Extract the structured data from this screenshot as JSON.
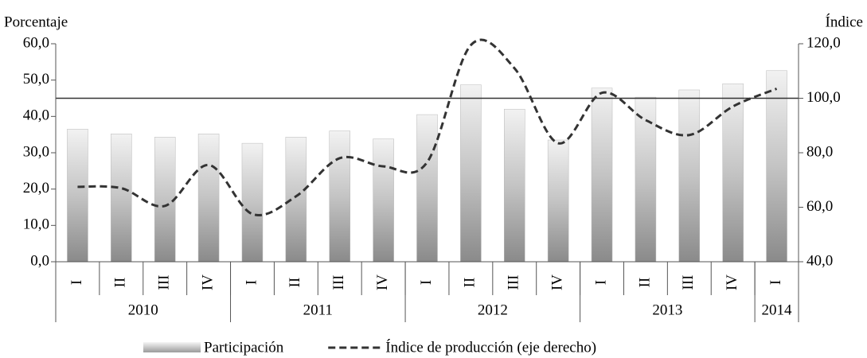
{
  "chart_data": {
    "type": "bar_line",
    "y_label": "Porcentaje",
    "y2_label": "Índice",
    "categories": [
      "I",
      "II",
      "III",
      "IV",
      "I",
      "II",
      "III",
      "IV",
      "I",
      "II",
      "III",
      "IV",
      "I",
      "II",
      "III",
      "IV",
      "I"
    ],
    "groups": [
      {
        "label": "2010",
        "span": 4
      },
      {
        "label": "2011",
        "span": 4
      },
      {
        "label": "2012",
        "span": 4
      },
      {
        "label": "2013",
        "span": 4
      },
      {
        "label": "2014",
        "span": 1
      }
    ],
    "series": [
      {
        "name": "Participación",
        "type": "bar",
        "color": "#b8b8b8",
        "values": [
          36.5,
          35.2,
          34.3,
          35.2,
          32.6,
          34.3,
          36.0,
          33.8,
          40.5,
          48.7,
          42.0,
          33.5,
          47.8,
          45.3,
          47.3,
          49.0,
          52.6
        ]
      },
      {
        "name": "Índice de producción (eje derecho)",
        "type": "line",
        "axis": "y2",
        "color": "#333333",
        "dashed": true,
        "values": [
          67.5,
          67.0,
          60.5,
          75.5,
          57.5,
          64.0,
          78.0,
          75.0,
          76.5,
          119.5,
          111.0,
          83.5,
          102.0,
          92.0,
          86.5,
          97.0,
          103.5
        ]
      }
    ],
    "reference_line": {
      "axis": "y2",
      "value": 100
    },
    "ylim": [
      0,
      60
    ],
    "yticks": [
      {
        "value": 0,
        "label": "0,0"
      },
      {
        "value": 10,
        "label": "10,0"
      },
      {
        "value": 20,
        "label": "20,0"
      },
      {
        "value": 30,
        "label": "30,0"
      },
      {
        "value": 40,
        "label": "40,0"
      },
      {
        "value": 50,
        "label": "50,0"
      },
      {
        "value": 60,
        "label": "60,0"
      }
    ],
    "y2lim": [
      40,
      120
    ],
    "y2ticks": [
      {
        "value": 40,
        "label": "40,0"
      },
      {
        "value": 60,
        "label": "60,0"
      },
      {
        "value": 80,
        "label": "80,0"
      },
      {
        "value": 100,
        "label": "100,0"
      },
      {
        "value": 120,
        "label": "120,0"
      }
    ],
    "legend": "bottom"
  }
}
